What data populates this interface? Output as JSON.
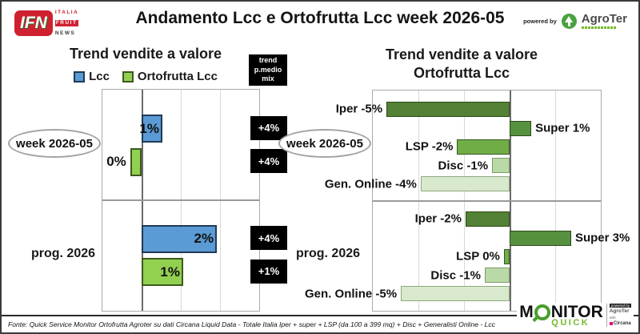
{
  "header": {
    "title": "Andamento Lcc e Ortofrutta Lcc week 2026-05",
    "powered_by": "powered by",
    "agroter_name": "AgroTer",
    "ifn": {
      "abbr": "IFN",
      "line1": "ITALIA",
      "line2": "FRUIT",
      "line3": "NEWS"
    }
  },
  "chart_data": [
    {
      "type": "bar",
      "orientation": "horizontal",
      "title": "Trend vendite a valore",
      "trend_header": "trend\np.medio\nmix",
      "xlim": [
        -1,
        3
      ],
      "gridline_step": 1,
      "legend": [
        {
          "label": "Lcc",
          "color": "#5B9BD5",
          "border": "#1f3b54"
        },
        {
          "label": "Ortofrutta Lcc",
          "color": "#92D050",
          "border": "#3c5a1e"
        }
      ],
      "rows": [
        {
          "group": "week 2026-05",
          "series": [
            {
              "name": "Lcc",
              "label": "1%",
              "value": 1,
              "est": 0.53,
              "trend": "+4%"
            },
            {
              "name": "Ortofrutta Lcc",
              "label": "0%",
              "value": 0,
              "est": -0.29,
              "trend": "+4%"
            }
          ]
        },
        {
          "group": "prog. 2026",
          "series": [
            {
              "name": "Lcc",
              "label": "2%",
              "value": 2,
              "est": 1.92,
              "trend": "+4%"
            },
            {
              "name": "Ortofrutta Lcc",
              "label": "1%",
              "value": 1,
              "est": 1.06,
              "trend": "+1%"
            }
          ]
        }
      ]
    },
    {
      "type": "bar",
      "orientation": "horizontal",
      "title": "Trend vendite a valore",
      "subtitle": "Ortofrutta Lcc",
      "xlim": [
        -6,
        4
      ],
      "gridline_step": 2,
      "rows": [
        {
          "group": "week 2026-05",
          "bars": [
            {
              "name": "Iper",
              "label": "Iper -5%",
              "value": -5,
              "est": -5.4,
              "color": "#538135",
              "border": "#2d4a17"
            },
            {
              "name": "Super",
              "label": "Super 1%",
              "value": 1,
              "est": 0.95,
              "color": "#569140",
              "border": "#2d4a17"
            },
            {
              "name": "LSP",
              "label": "LSP -2%",
              "value": -2,
              "est": -2.3,
              "color": "#70AD47",
              "border": "#375623"
            },
            {
              "name": "Disc",
              "label": "Disc -1%",
              "value": -1,
              "est": -0.77,
              "color": "#BAD9A9",
              "border": "#7d9c66"
            },
            {
              "name": "Gen. Online",
              "label": "Gen. Online -4%",
              "value": -4,
              "est": -3.9,
              "color": "#D8E9CD",
              "border": "#8fa87d"
            }
          ]
        },
        {
          "group": "prog. 2026",
          "bars": [
            {
              "name": "Iper",
              "label": "Iper -2%",
              "value": -2,
              "est": -1.93,
              "color": "#538135",
              "border": "#2d4a17"
            },
            {
              "name": "Super",
              "label": "Super 3%",
              "value": 3,
              "est": 2.7,
              "color": "#569140",
              "border": "#2d4a17"
            },
            {
              "name": "LSP",
              "label": "LSP 0%",
              "value": 0,
              "est": -0.25,
              "color": "#70AD47",
              "border": "#375623"
            },
            {
              "name": "Disc",
              "label": "Disc -1%",
              "value": -1,
              "est": -1.09,
              "color": "#BAD9A9",
              "border": "#7d9c66"
            },
            {
              "name": "Gen. Online",
              "label": "Gen. Online -5%",
              "value": -5,
              "est": -4.77,
              "color": "#D8E9CD",
              "border": "#8fa87d"
            }
          ]
        }
      ]
    }
  ],
  "footer": {
    "source": "Fonte: Quick Service Monitor Ortofrutta Agroter su dati Circana Liquid Data - Totale Italia Iper + super + LSP (da 100 a 399 mq) + Disc + Generalisti Online - Lcc",
    "monitor": {
      "m1": "M",
      "m2": "NITOR",
      "sub": "QUICK",
      "side_powered": "powered by",
      "side_agroter": "AgroTer",
      "side_with": "with",
      "side_circana": "Circana"
    }
  }
}
